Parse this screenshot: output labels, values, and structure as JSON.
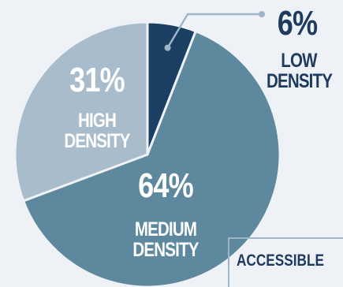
{
  "chart_data": {
    "type": "pie",
    "title": "",
    "slices": [
      {
        "pct_label": "6%",
        "name_line1": "LOW",
        "name_line2": "DENSITY",
        "value": 6,
        "color": "#1b3f62"
      },
      {
        "pct_label": "64%",
        "name_line1": "MEDIUM",
        "name_line2": "DENSITY",
        "value": 64,
        "color": "#5d889e"
      },
      {
        "pct_label": "31%",
        "name_line1": "HIGH",
        "name_line2": "DENSITY",
        "value": 31,
        "color": "#a9bccb"
      }
    ],
    "colors": {
      "background": "#eef2f7",
      "callout_line": "#9fb5c8",
      "label_dark": "#1e3a5f",
      "label_light": "#ffffff"
    }
  },
  "footer": {
    "text": "ACCESSIBLE"
  }
}
